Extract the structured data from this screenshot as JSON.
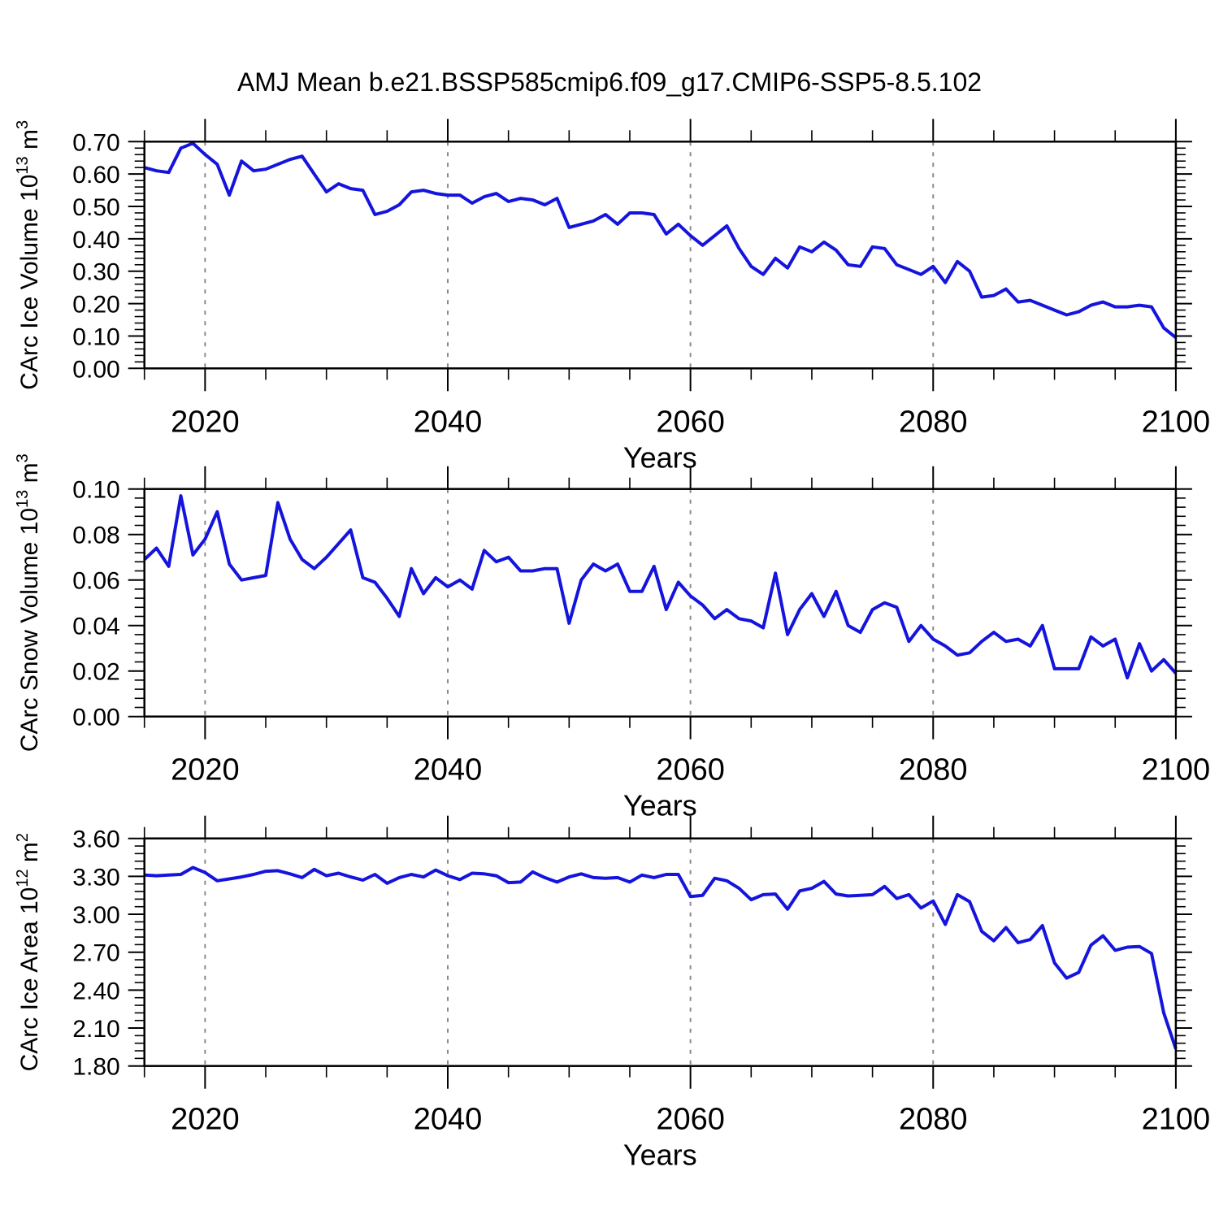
{
  "title": "AMJ Mean b.e21.BSSP585cmip6.f09_g17.CMIP6-SSP5-8.5.102",
  "line_color": "#1414dd",
  "grid_color": "#8a8a8a",
  "chart_data": [
    {
      "name": "ice-volume",
      "type": "line",
      "ylabel_segments": [
        {
          "t": "CArc Ice Volume 10"
        },
        {
          "t": "13",
          "sup": true
        },
        {
          "t": " m"
        },
        {
          "t": "3",
          "sup": true
        }
      ],
      "xlabel": "Years",
      "x_start": 2015,
      "x_end": 2100,
      "ylim": [
        0.0,
        0.7
      ],
      "ytick_labels": [
        "0.00",
        "0.10",
        "0.20",
        "0.30",
        "0.40",
        "0.50",
        "0.60",
        "0.70"
      ],
      "ytick_values": [
        0.0,
        0.1,
        0.2,
        0.3,
        0.4,
        0.5,
        0.6,
        0.7
      ],
      "y_minor_step": 0.02,
      "xticks": [
        2020,
        2040,
        2060,
        2080,
        2100
      ],
      "x_minor_step": 5,
      "grid_x": [
        2020,
        2040,
        2060,
        2080
      ],
      "values": [
        0.62,
        0.61,
        0.605,
        0.68,
        0.695,
        0.66,
        0.63,
        0.535,
        0.64,
        0.61,
        0.615,
        0.63,
        0.645,
        0.655,
        0.6,
        0.545,
        0.57,
        0.555,
        0.55,
        0.475,
        0.485,
        0.505,
        0.545,
        0.55,
        0.54,
        0.535,
        0.535,
        0.51,
        0.53,
        0.54,
        0.515,
        0.525,
        0.52,
        0.505,
        0.525,
        0.435,
        0.445,
        0.455,
        0.475,
        0.445,
        0.48,
        0.48,
        0.475,
        0.415,
        0.445,
        0.41,
        0.38,
        0.41,
        0.44,
        0.37,
        0.315,
        0.29,
        0.34,
        0.31,
        0.375,
        0.36,
        0.39,
        0.365,
        0.32,
        0.315,
        0.375,
        0.37,
        0.32,
        0.305,
        0.29,
        0.315,
        0.265,
        0.33,
        0.3,
        0.22,
        0.225,
        0.245,
        0.205,
        0.21,
        0.195,
        0.18,
        0.165,
        0.175,
        0.195,
        0.205,
        0.19,
        0.19,
        0.195,
        0.19,
        0.125,
        0.095
      ]
    },
    {
      "name": "snow-volume",
      "type": "line",
      "ylabel_segments": [
        {
          "t": "CArc Snow Volume 10"
        },
        {
          "t": "13",
          "sup": true
        },
        {
          "t": " m"
        },
        {
          "t": "3",
          "sup": true
        }
      ],
      "xlabel": "Years",
      "x_start": 2015,
      "x_end": 2100,
      "ylim": [
        0.0,
        0.1
      ],
      "ytick_labels": [
        "0.00",
        "0.02",
        "0.04",
        "0.06",
        "0.08",
        "0.10"
      ],
      "ytick_values": [
        0.0,
        0.02,
        0.04,
        0.06,
        0.08,
        0.1
      ],
      "y_minor_step": 0.004,
      "xticks": [
        2020,
        2040,
        2060,
        2080,
        2100
      ],
      "x_minor_step": 5,
      "grid_x": [
        2020,
        2040,
        2060,
        2080
      ],
      "values": [
        0.069,
        0.074,
        0.066,
        0.097,
        0.071,
        0.078,
        0.09,
        0.067,
        0.06,
        0.061,
        0.062,
        0.094,
        0.078,
        0.069,
        0.065,
        0.07,
        0.076,
        0.082,
        0.061,
        0.059,
        0.052,
        0.044,
        0.065,
        0.054,
        0.061,
        0.057,
        0.06,
        0.056,
        0.073,
        0.068,
        0.07,
        0.064,
        0.064,
        0.065,
        0.065,
        0.041,
        0.06,
        0.067,
        0.064,
        0.067,
        0.055,
        0.055,
        0.066,
        0.047,
        0.059,
        0.053,
        0.049,
        0.043,
        0.047,
        0.043,
        0.042,
        0.039,
        0.063,
        0.036,
        0.047,
        0.054,
        0.044,
        0.055,
        0.04,
        0.037,
        0.047,
        0.05,
        0.048,
        0.033,
        0.04,
        0.034,
        0.031,
        0.027,
        0.028,
        0.033,
        0.037,
        0.033,
        0.034,
        0.031,
        0.04,
        0.021,
        0.021,
        0.021,
        0.035,
        0.031,
        0.034,
        0.017,
        0.032,
        0.02,
        0.025,
        0.019
      ]
    },
    {
      "name": "ice-area",
      "type": "line",
      "ylabel_segments": [
        {
          "t": "CArc Ice Area 10"
        },
        {
          "t": "12",
          "sup": true
        },
        {
          "t": " m"
        },
        {
          "t": "2",
          "sup": true
        }
      ],
      "xlabel": "Years",
      "x_start": 2015,
      "x_end": 2100,
      "ylim": [
        1.8,
        3.6
      ],
      "ytick_labels": [
        "1.80",
        "2.10",
        "2.40",
        "2.70",
        "3.00",
        "3.30",
        "3.60"
      ],
      "ytick_values": [
        1.8,
        2.1,
        2.4,
        2.7,
        3.0,
        3.3,
        3.6
      ],
      "y_minor_step": 0.06,
      "xticks": [
        2020,
        2040,
        2060,
        2080,
        2100
      ],
      "x_minor_step": 5,
      "grid_x": [
        2020,
        2040,
        2060,
        2080
      ],
      "values": [
        3.31,
        3.305,
        3.31,
        3.315,
        3.37,
        3.33,
        3.265,
        3.28,
        3.295,
        3.315,
        3.34,
        3.345,
        3.32,
        3.29,
        3.355,
        3.305,
        3.325,
        3.295,
        3.27,
        3.315,
        3.245,
        3.29,
        3.315,
        3.295,
        3.35,
        3.305,
        3.275,
        3.325,
        3.32,
        3.305,
        3.25,
        3.255,
        3.335,
        3.29,
        3.255,
        3.295,
        3.32,
        3.29,
        3.285,
        3.29,
        3.255,
        3.31,
        3.29,
        3.315,
        3.315,
        3.14,
        3.15,
        3.285,
        3.265,
        3.205,
        3.115,
        3.155,
        3.16,
        3.04,
        3.185,
        3.205,
        3.26,
        3.16,
        3.145,
        3.15,
        3.155,
        3.22,
        3.125,
        3.155,
        3.05,
        3.105,
        2.92,
        3.155,
        3.1,
        2.865,
        2.79,
        2.895,
        2.775,
        2.8,
        2.91,
        2.615,
        2.495,
        2.54,
        2.755,
        2.83,
        2.715,
        2.74,
        2.745,
        2.69,
        2.22,
        1.935
      ]
    }
  ]
}
